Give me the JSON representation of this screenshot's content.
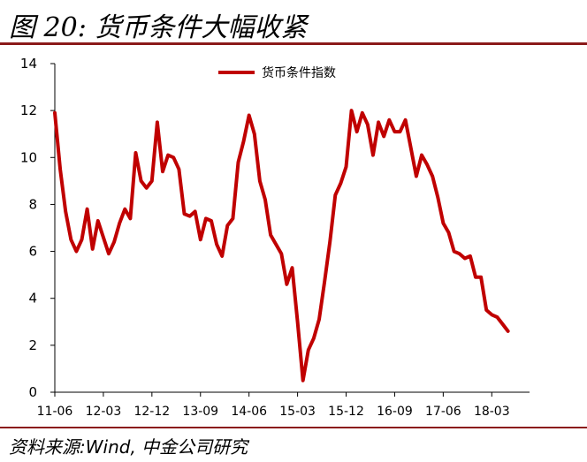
{
  "header": {
    "title": "图 20:  货币条件大幅收紧",
    "accent_color": "#8b1a1a"
  },
  "footer": {
    "source": "资料来源:Wind,  中金公司研究"
  },
  "chart_data": {
    "type": "line",
    "title": "",
    "xlabel": "",
    "ylabel": "",
    "ylim": [
      0,
      14
    ],
    "yticks": [
      0,
      2,
      4,
      6,
      8,
      10,
      12,
      14
    ],
    "xlim": [
      0,
      88
    ],
    "xticks": [
      {
        "label": "11-06",
        "x": 0
      },
      {
        "label": "12-03",
        "x": 9
      },
      {
        "label": "12-12",
        "x": 18
      },
      {
        "label": "13-09",
        "x": 27
      },
      {
        "label": "14-06",
        "x": 36
      },
      {
        "label": "15-03",
        "x": 45
      },
      {
        "label": "15-12",
        "x": 54
      },
      {
        "label": "16-09",
        "x": 63
      },
      {
        "label": "17-06",
        "x": 72
      },
      {
        "label": "18-03",
        "x": 81
      }
    ],
    "grid": false,
    "legend_position": "top-center",
    "series": [
      {
        "name": "货币条件指数",
        "color": "#c00000",
        "points": [
          [
            0,
            11.9
          ],
          [
            1,
            9.5
          ],
          [
            2,
            7.7
          ],
          [
            3,
            6.5
          ],
          [
            4,
            6.0
          ],
          [
            5,
            6.5
          ],
          [
            6,
            7.8
          ],
          [
            7,
            6.1
          ],
          [
            8,
            7.3
          ],
          [
            9,
            6.6
          ],
          [
            10,
            5.9
          ],
          [
            11,
            6.4
          ],
          [
            12,
            7.2
          ],
          [
            13,
            7.8
          ],
          [
            14,
            7.4
          ],
          [
            15,
            10.2
          ],
          [
            16,
            9.0
          ],
          [
            17,
            8.7
          ],
          [
            18,
            9.0
          ],
          [
            19,
            11.5
          ],
          [
            20,
            9.4
          ],
          [
            21,
            10.1
          ],
          [
            22,
            10.0
          ],
          [
            23,
            9.5
          ],
          [
            24,
            7.6
          ],
          [
            25,
            7.5
          ],
          [
            26,
            7.7
          ],
          [
            27,
            6.5
          ],
          [
            28,
            7.4
          ],
          [
            29,
            7.3
          ],
          [
            30,
            6.3
          ],
          [
            31,
            5.8
          ],
          [
            32,
            7.1
          ],
          [
            33,
            7.4
          ],
          [
            34,
            9.8
          ],
          [
            35,
            10.7
          ],
          [
            36,
            11.8
          ],
          [
            37,
            11.0
          ],
          [
            38,
            9.0
          ],
          [
            39,
            8.2
          ],
          [
            40,
            6.7
          ],
          [
            41,
            6.3
          ],
          [
            42,
            5.9
          ],
          [
            43,
            4.6
          ],
          [
            44,
            5.3
          ],
          [
            45,
            3.0
          ],
          [
            46,
            0.5
          ],
          [
            47,
            1.8
          ],
          [
            48,
            2.3
          ],
          [
            49,
            3.1
          ],
          [
            50,
            4.7
          ],
          [
            51,
            6.4
          ],
          [
            52,
            8.4
          ],
          [
            53,
            8.9
          ],
          [
            54,
            9.6
          ],
          [
            55,
            12.0
          ],
          [
            56,
            11.1
          ],
          [
            57,
            11.9
          ],
          [
            58,
            11.4
          ],
          [
            59,
            10.1
          ],
          [
            60,
            11.5
          ],
          [
            61,
            10.9
          ],
          [
            62,
            11.6
          ],
          [
            63,
            11.1
          ],
          [
            64,
            11.1
          ],
          [
            65,
            11.6
          ],
          [
            66,
            10.4
          ],
          [
            67,
            9.2
          ],
          [
            68,
            10.1
          ],
          [
            69,
            9.7
          ],
          [
            70,
            9.2
          ],
          [
            71,
            8.3
          ],
          [
            72,
            7.2
          ],
          [
            73,
            6.8
          ],
          [
            74,
            6.0
          ],
          [
            75,
            5.9
          ],
          [
            76,
            5.7
          ],
          [
            77,
            5.8
          ],
          [
            78,
            4.9
          ],
          [
            79,
            4.9
          ],
          [
            80,
            3.5
          ],
          [
            81,
            3.3
          ],
          [
            82,
            3.2
          ],
          [
            83,
            2.9
          ],
          [
            84,
            2.6
          ]
        ]
      }
    ]
  }
}
